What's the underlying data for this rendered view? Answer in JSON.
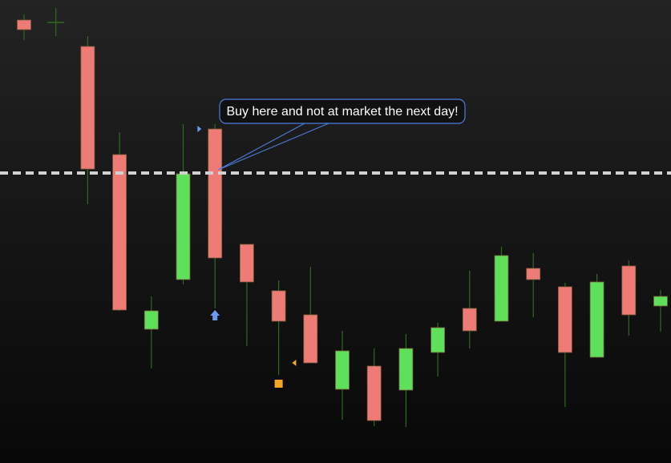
{
  "chart_data": {
    "type": "candlestick",
    "categories": [
      null,
      null,
      null,
      null,
      null,
      null,
      null,
      null,
      null,
      null,
      null,
      null,
      null,
      null,
      null,
      null,
      null,
      null,
      null,
      null,
      null
    ],
    "open": [
      553,
      550,
      520,
      385,
      167,
      229,
      417,
      273,
      215,
      185,
      92,
      121,
      91,
      138,
      193,
      177,
      243,
      220,
      132,
      246,
      196
    ],
    "high": [
      560,
      568,
      533,
      413,
      208,
      423,
      423,
      273,
      228,
      245,
      165,
      143,
      161,
      175,
      240,
      270,
      262,
      225,
      236,
      253,
      216
    ],
    "low": [
      528,
      533,
      323,
      190,
      118,
      223,
      193,
      146,
      110,
      125,
      54,
      46,
      45,
      108,
      143,
      177,
      182,
      70,
      132,
      159,
      164
    ],
    "close": [
      541,
      550,
      367,
      191,
      190,
      361,
      256,
      226,
      177,
      125,
      140,
      53,
      143,
      169,
      165,
      259,
      229,
      138,
      226,
      185,
      208
    ],
    "up_color": "#5ee05a",
    "down_color": "#ef7b77",
    "wick_color": "#2f6a22",
    "ylim": [
      0,
      578
    ],
    "level_line": 362,
    "annotation": {
      "text": "Buy here and not at market the next day!",
      "index": 6,
      "value": 366
    },
    "markers": [
      {
        "index": 6,
        "value": 184,
        "shape": "arrow-up",
        "color": "#6b9bf0"
      },
      {
        "index": 8,
        "value": 99,
        "shape": "square",
        "color": "#f5a623"
      },
      {
        "index": 5.5,
        "value": 417,
        "shape": "triangle-right",
        "color": "#6b9bf0"
      },
      {
        "index": 8.5,
        "value": 125,
        "shape": "triangle-left",
        "color": "#f5a623"
      }
    ]
  }
}
